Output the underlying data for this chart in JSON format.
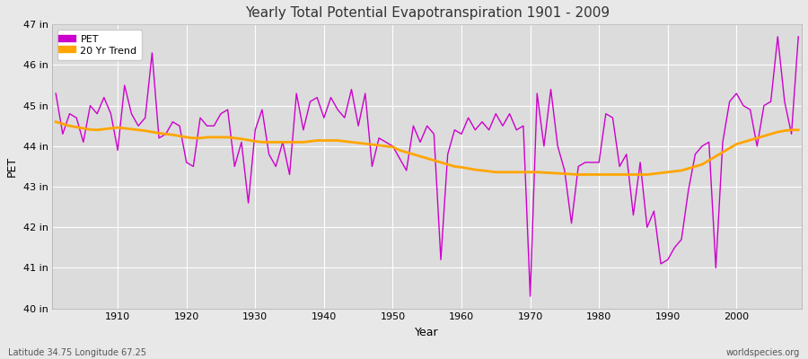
{
  "title": "Yearly Total Potential Evapotranspiration 1901 - 2009",
  "xlabel": "Year",
  "ylabel": "PET",
  "lat_lon_label": "Latitude 34.75 Longitude 67.25",
  "watermark": "worldspecies.org",
  "pet_color": "#CC00CC",
  "trend_color": "#FFA500",
  "background_color": "#E8E8E8",
  "plot_bg_color": "#DCDCDC",
  "ylim": [
    40,
    47
  ],
  "ytick_labels": [
    "40 in",
    "41 in",
    "42 in",
    "43 in",
    "44 in",
    "45 in",
    "46 in",
    "47 in"
  ],
  "ytick_values": [
    40,
    41,
    42,
    43,
    44,
    45,
    46,
    47
  ],
  "xtick_values": [
    1910,
    1920,
    1930,
    1940,
    1950,
    1960,
    1970,
    1980,
    1990,
    2000
  ],
  "years": [
    1901,
    1902,
    1903,
    1904,
    1905,
    1906,
    1907,
    1908,
    1909,
    1910,
    1911,
    1912,
    1913,
    1914,
    1915,
    1916,
    1917,
    1918,
    1919,
    1920,
    1921,
    1922,
    1923,
    1924,
    1925,
    1926,
    1927,
    1928,
    1929,
    1930,
    1931,
    1932,
    1933,
    1934,
    1935,
    1936,
    1937,
    1938,
    1939,
    1940,
    1941,
    1942,
    1943,
    1944,
    1945,
    1946,
    1947,
    1948,
    1949,
    1950,
    1951,
    1952,
    1953,
    1954,
    1955,
    1956,
    1957,
    1958,
    1959,
    1960,
    1961,
    1962,
    1963,
    1964,
    1965,
    1966,
    1967,
    1968,
    1969,
    1970,
    1971,
    1972,
    1973,
    1974,
    1975,
    1976,
    1977,
    1978,
    1979,
    1980,
    1981,
    1982,
    1983,
    1984,
    1985,
    1986,
    1987,
    1988,
    1989,
    1990,
    1991,
    1992,
    1993,
    1994,
    1995,
    1996,
    1997,
    1998,
    1999,
    2000,
    2001,
    2002,
    2003,
    2004,
    2005,
    2006,
    2007,
    2008,
    2009
  ],
  "pet_values": [
    45.3,
    44.3,
    44.8,
    44.7,
    44.1,
    45.0,
    44.8,
    45.2,
    44.8,
    43.9,
    45.5,
    44.8,
    44.5,
    44.7,
    46.3,
    44.2,
    44.3,
    44.6,
    44.5,
    43.6,
    43.5,
    44.7,
    44.5,
    44.5,
    44.8,
    44.9,
    43.5,
    44.1,
    42.6,
    44.4,
    44.9,
    43.8,
    43.5,
    44.1,
    43.3,
    45.3,
    44.4,
    45.1,
    45.2,
    44.7,
    45.2,
    44.9,
    44.7,
    45.4,
    44.5,
    45.3,
    43.5,
    44.2,
    44.1,
    44.0,
    43.7,
    43.4,
    44.5,
    44.1,
    44.5,
    44.3,
    41.2,
    43.8,
    44.4,
    44.3,
    44.7,
    44.4,
    44.6,
    44.4,
    44.8,
    44.5,
    44.8,
    44.4,
    44.5,
    40.3,
    45.3,
    44.0,
    45.4,
    44.0,
    43.4,
    42.1,
    43.5,
    43.6,
    43.6,
    43.6,
    44.8,
    44.7,
    43.5,
    43.8,
    42.3,
    43.6,
    42.0,
    42.4,
    41.1,
    41.2,
    41.5,
    41.7,
    42.9,
    43.8,
    44.0,
    44.1,
    41.0,
    44.1,
    45.1,
    45.3,
    45.0,
    44.9,
    44.0,
    45.0,
    45.1,
    46.7,
    45.1,
    44.3,
    46.7
  ],
  "trend_values": [
    44.6,
    44.55,
    44.5,
    44.47,
    44.44,
    44.41,
    44.4,
    44.42,
    44.44,
    44.46,
    44.44,
    44.42,
    44.4,
    44.38,
    44.35,
    44.32,
    44.3,
    44.28,
    44.25,
    44.22,
    44.2,
    44.2,
    44.22,
    44.22,
    44.22,
    44.22,
    44.2,
    44.18,
    44.15,
    44.12,
    44.1,
    44.1,
    44.1,
    44.1,
    44.1,
    44.1,
    44.1,
    44.12,
    44.14,
    44.14,
    44.14,
    44.14,
    44.12,
    44.1,
    44.08,
    44.06,
    44.04,
    44.02,
    44.0,
    43.98,
    43.9,
    43.85,
    43.8,
    43.75,
    43.7,
    43.65,
    43.6,
    43.55,
    43.5,
    43.48,
    43.45,
    43.42,
    43.4,
    43.38,
    43.36,
    43.36,
    43.36,
    43.36,
    43.36,
    43.36,
    43.36,
    43.35,
    43.34,
    43.33,
    43.32,
    43.31,
    43.3,
    43.3,
    43.3,
    43.3,
    43.3,
    43.3,
    43.3,
    43.3,
    43.3,
    43.3,
    43.3,
    43.32,
    43.34,
    43.36,
    43.38,
    43.4,
    43.45,
    43.5,
    43.55,
    43.65,
    43.75,
    43.85,
    43.95,
    44.05,
    44.1,
    44.15,
    44.2,
    44.25,
    44.3,
    44.35,
    44.38,
    44.4,
    44.4
  ]
}
